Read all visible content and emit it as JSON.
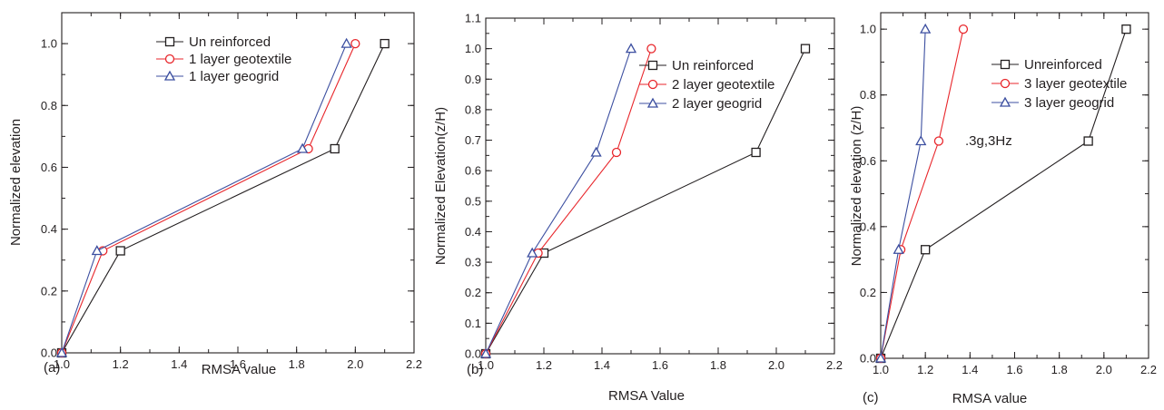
{
  "chart_data": [
    {
      "type": "line",
      "panel_label": "(a)",
      "xlabel": "RMSA value",
      "ylabel": "Normalized elevation",
      "xlim": [
        1.0,
        2.2
      ],
      "ylim": [
        0.0,
        1.1
      ],
      "xticks": [
        "1.0",
        "1.2",
        "1.4",
        "1.6",
        "1.8",
        "2.0",
        "2.2"
      ],
      "yticks": [
        "0.0",
        "0.2",
        "0.4",
        "0.6",
        "0.8",
        "1.0"
      ],
      "legend_position": "top-right",
      "annotation": "",
      "series": [
        {
          "name": "Un reinforced",
          "color": "#231f20",
          "marker": "square",
          "x": [
            1.0,
            1.2,
            1.93,
            2.1
          ],
          "y": [
            0.0,
            0.33,
            0.66,
            1.0
          ]
        },
        {
          "name": "1 layer geotextile",
          "color": "#e8262b",
          "marker": "circle",
          "x": [
            1.0,
            1.14,
            1.84,
            2.0
          ],
          "y": [
            0.0,
            0.33,
            0.66,
            1.0
          ]
        },
        {
          "name": "1 layer geogrid",
          "color": "#3c4fa0",
          "marker": "triangle",
          "x": [
            1.0,
            1.12,
            1.82,
            1.97
          ],
          "y": [
            0.0,
            0.33,
            0.66,
            1.0
          ]
        }
      ]
    },
    {
      "type": "line",
      "panel_label": "(b)",
      "xlabel": "RMSA Value",
      "ylabel": "Normalized Elevation(z/H)",
      "xlim": [
        1.0,
        2.2
      ],
      "ylim": [
        0.0,
        1.1
      ],
      "xticks": [
        "1.0",
        "1.2",
        "1.4",
        "1.6",
        "1.8",
        "2.0",
        "2.2"
      ],
      "yticks": [
        "0.0",
        "0.1",
        "0.2",
        "0.3",
        "0.4",
        "0.5",
        "0.6",
        "0.7",
        "0.8",
        "0.9",
        "1.0",
        "1.1"
      ],
      "legend_position": "top-right",
      "annotation": "",
      "series": [
        {
          "name": "Un reinforced",
          "color": "#231f20",
          "marker": "square",
          "x": [
            1.0,
            1.2,
            1.93,
            2.1
          ],
          "y": [
            0.0,
            0.33,
            0.66,
            1.0
          ]
        },
        {
          "name": "2 layer geotextile",
          "color": "#e8262b",
          "marker": "circle",
          "x": [
            1.0,
            1.18,
            1.45,
            1.57
          ],
          "y": [
            0.0,
            0.33,
            0.66,
            1.0
          ]
        },
        {
          "name": "2 layer geogrid",
          "color": "#3c4fa0",
          "marker": "triangle",
          "x": [
            1.0,
            1.16,
            1.38,
            1.5
          ],
          "y": [
            0.0,
            0.33,
            0.66,
            1.0
          ]
        }
      ]
    },
    {
      "type": "line",
      "panel_label": "(c)",
      "xlabel": "RMSA value",
      "ylabel": "Normalized elevation (z/H)",
      "xlim": [
        1.0,
        2.2
      ],
      "ylim": [
        0.0,
        1.05
      ],
      "xticks": [
        "1.0",
        "1.2",
        "1.4",
        "1.6",
        "1.8",
        "2.0",
        "2.2"
      ],
      "yticks": [
        "0.0",
        "0.2",
        "0.4",
        "0.6",
        "0.8",
        "1.0"
      ],
      "legend_position": "top-right",
      "annotation": ".3g,3Hz",
      "series": [
        {
          "name": "Unreinforced",
          "color": "#231f20",
          "marker": "square",
          "x": [
            1.0,
            1.2,
            1.93,
            2.1
          ],
          "y": [
            0.0,
            0.33,
            0.66,
            1.0
          ]
        },
        {
          "name": "3 layer geotextile",
          "color": "#e8262b",
          "marker": "circle",
          "x": [
            1.0,
            1.09,
            1.26,
            1.37
          ],
          "y": [
            0.0,
            0.33,
            0.66,
            1.0
          ]
        },
        {
          "name": "3 layer geogrid",
          "color": "#3c4fa0",
          "marker": "triangle",
          "x": [
            1.0,
            1.08,
            1.18,
            1.2
          ],
          "y": [
            0.0,
            0.33,
            0.66,
            1.0
          ]
        }
      ]
    }
  ]
}
